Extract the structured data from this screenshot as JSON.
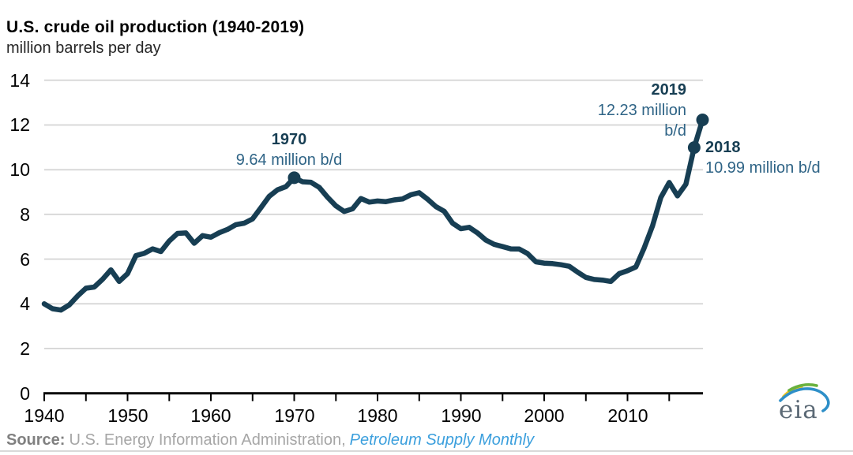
{
  "page": {
    "title": "U.S. crude oil production (1940-2019)",
    "subtitle": "million barrels per day"
  },
  "annotations": {
    "peak1970": {
      "year": "1970",
      "line1": "9.64 million b/d"
    },
    "y2019": {
      "year": "2019",
      "line1": "12.23 million",
      "line2": "b/d"
    },
    "y2018": {
      "year": "2018",
      "line1": "10.99 million b/d"
    }
  },
  "source": {
    "label": "Source:",
    "text": "U.S. Energy Information Administration,",
    "publication": "Petroleum Supply Monthly"
  },
  "logo": {
    "text": "eia"
  },
  "colors": {
    "line": "#173e53",
    "marker": "#173e53",
    "annotation_year": "#173e53",
    "annotation_value": "#2f6486",
    "gridline": "#d9d9d9",
    "axis": "#000000",
    "title": "#000000",
    "subtitle": "#262626",
    "source_label": "#808080",
    "source_text": "#a6a6a6",
    "source_link_blue": "#3b9fdd",
    "logo_text": "#5c6a76",
    "logo_yellow": "#f2c51c",
    "logo_green": "#69b13e",
    "logo_blue": "#2e8fc8"
  },
  "chart_data": {
    "type": "line",
    "title": "U.S. crude oil production (1940-2019)",
    "xlabel": "",
    "ylabel": "million barrels per day",
    "year_start": 1940,
    "year_end": 2019,
    "x_step": 1,
    "values": [
      4.0,
      3.78,
      3.72,
      3.95,
      4.35,
      4.7,
      4.75,
      5.1,
      5.52,
      5.0,
      5.35,
      6.16,
      6.26,
      6.46,
      6.34,
      6.81,
      7.15,
      7.17,
      6.71,
      7.05,
      6.98,
      7.18,
      7.33,
      7.54,
      7.61,
      7.8,
      8.3,
      8.81,
      9.1,
      9.24,
      9.64,
      9.46,
      9.44,
      9.21,
      8.77,
      8.38,
      8.13,
      8.25,
      8.71,
      8.55,
      8.6,
      8.57,
      8.65,
      8.69,
      8.88,
      8.97,
      8.68,
      8.35,
      8.14,
      7.61,
      7.36,
      7.42,
      7.17,
      6.85,
      6.66,
      6.56,
      6.46,
      6.45,
      6.25,
      5.88,
      5.82,
      5.8,
      5.75,
      5.68,
      5.42,
      5.18,
      5.09,
      5.06,
      5.0,
      5.35,
      5.48,
      5.65,
      6.5,
      7.49,
      8.76,
      9.43,
      8.83,
      9.35,
      10.99,
      12.23
    ],
    "ylim": [
      0,
      14
    ],
    "y_ticks": [
      0,
      2,
      4,
      6,
      8,
      10,
      12,
      14
    ],
    "x_tick_labels": [
      1940,
      1950,
      1960,
      1970,
      1980,
      1990,
      2000,
      2010
    ],
    "x_minor_tick_step": 5,
    "minor_tick_end": 2015,
    "grid": "horizontal",
    "legend": "none",
    "markers": [
      {
        "year": 1970,
        "value": 9.64
      },
      {
        "year": 2018,
        "value": 10.99
      },
      {
        "year": 2019,
        "value": 12.23
      }
    ]
  }
}
